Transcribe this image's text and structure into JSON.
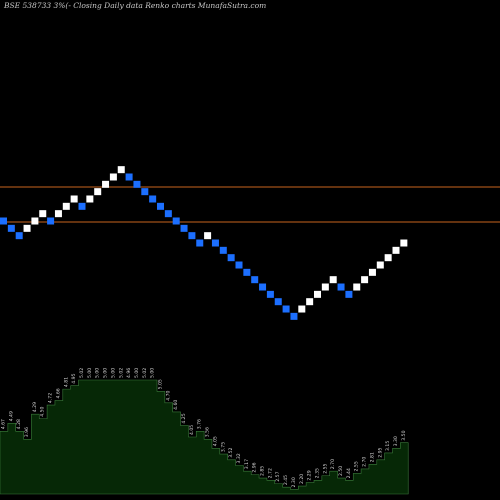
{
  "chart_data": {
    "type": "renko",
    "title": "BSE 538733 3%(-  Closing Daily data  Renko  charts MunafaSutra.com",
    "colors": {
      "background": "#000000",
      "up_brick": "#ffffff",
      "down_brick": "#1c6fff",
      "reference_line": "#c8641e",
      "volume_fill": "#062806",
      "volume_stroke": "#3a7a3a"
    },
    "reference_lines": [
      {
        "name": "upper",
        "level": 10
      },
      {
        "name": "lower",
        "level": 7
      }
    ],
    "bricks": [
      {
        "level": 7,
        "dir": "down"
      },
      {
        "level": 6.5,
        "dir": "down"
      },
      {
        "level": 6,
        "dir": "down"
      },
      {
        "level": 6.5,
        "dir": "up"
      },
      {
        "level": 7,
        "dir": "up"
      },
      {
        "level": 7.5,
        "dir": "up"
      },
      {
        "level": 7,
        "dir": "down"
      },
      {
        "level": 7.5,
        "dir": "up"
      },
      {
        "level": 8,
        "dir": "up"
      },
      {
        "level": 8.5,
        "dir": "up"
      },
      {
        "level": 8,
        "dir": "down"
      },
      {
        "level": 8.5,
        "dir": "up"
      },
      {
        "level": 9,
        "dir": "up"
      },
      {
        "level": 9.5,
        "dir": "up"
      },
      {
        "level": 10,
        "dir": "up"
      },
      {
        "level": 10.5,
        "dir": "up"
      },
      {
        "level": 10,
        "dir": "down"
      },
      {
        "level": 9.5,
        "dir": "down"
      },
      {
        "level": 9,
        "dir": "down"
      },
      {
        "level": 8.5,
        "dir": "down"
      },
      {
        "level": 8,
        "dir": "down"
      },
      {
        "level": 7.5,
        "dir": "down"
      },
      {
        "level": 7,
        "dir": "down"
      },
      {
        "level": 6.5,
        "dir": "down"
      },
      {
        "level": 6,
        "dir": "down"
      },
      {
        "level": 5.5,
        "dir": "down"
      },
      {
        "level": 6,
        "dir": "up"
      },
      {
        "level": 5.5,
        "dir": "down"
      },
      {
        "level": 5,
        "dir": "down"
      },
      {
        "level": 4.5,
        "dir": "down"
      },
      {
        "level": 4,
        "dir": "down"
      },
      {
        "level": 3.5,
        "dir": "down"
      },
      {
        "level": 3,
        "dir": "down"
      },
      {
        "level": 2.5,
        "dir": "down"
      },
      {
        "level": 2,
        "dir": "down"
      },
      {
        "level": 1.5,
        "dir": "down"
      },
      {
        "level": 1,
        "dir": "down"
      },
      {
        "level": 0.5,
        "dir": "down"
      },
      {
        "level": 1,
        "dir": "up"
      },
      {
        "level": 1.5,
        "dir": "up"
      },
      {
        "level": 2,
        "dir": "up"
      },
      {
        "level": 2.5,
        "dir": "up"
      },
      {
        "level": 3,
        "dir": "up"
      },
      {
        "level": 2.5,
        "dir": "down"
      },
      {
        "level": 2,
        "dir": "down"
      },
      {
        "level": 2.5,
        "dir": "up"
      },
      {
        "level": 3,
        "dir": "up"
      },
      {
        "level": 3.5,
        "dir": "up"
      },
      {
        "level": 4,
        "dir": "up"
      },
      {
        "level": 4.5,
        "dir": "up"
      },
      {
        "level": 5,
        "dir": "up"
      },
      {
        "level": 5.5,
        "dir": "up"
      }
    ],
    "volume_panel": {
      "heights": [
        0.55,
        0.62,
        0.55,
        0.48,
        0.7,
        0.66,
        0.78,
        0.82,
        0.92,
        0.95,
        1,
        1,
        1,
        1,
        1,
        1,
        1,
        1,
        1,
        1,
        0.9,
        0.8,
        0.72,
        0.6,
        0.5,
        0.55,
        0.48,
        0.4,
        0.35,
        0.3,
        0.25,
        0.2,
        0.17,
        0.14,
        0.12,
        0.09,
        0.06,
        0.04,
        0.07,
        0.1,
        0.12,
        0.16,
        0.2,
        0.14,
        0.12,
        0.18,
        0.22,
        0.26,
        0.3,
        0.36,
        0.4,
        0.45
      ],
      "labels": [
        "4.67",
        "4.49",
        "4.28",
        "3.96",
        "4.29",
        "4.50",
        "4.72",
        "4.66",
        "4.81",
        "4.95",
        "5.02",
        "5.00",
        "5.00",
        "5.00",
        "5.00",
        "5.02",
        "4.96",
        "5.00",
        "5.02",
        "5.00",
        "5.05",
        "4.70",
        "4.60",
        "4.25",
        "4.05",
        "3.76",
        "3.56",
        "4.05",
        "3.75",
        "3.52",
        "3.32",
        "3.17",
        "2.96",
        "2.85",
        "2.72",
        "2.57",
        "2.45",
        "2.30",
        "2.20",
        "2.29",
        "2.35",
        "2.55",
        "2.70",
        "2.50",
        "2.44",
        "2.55",
        "2.70",
        "2.81",
        "2.95",
        "3.15",
        "3.30",
        "3.50"
      ]
    }
  }
}
